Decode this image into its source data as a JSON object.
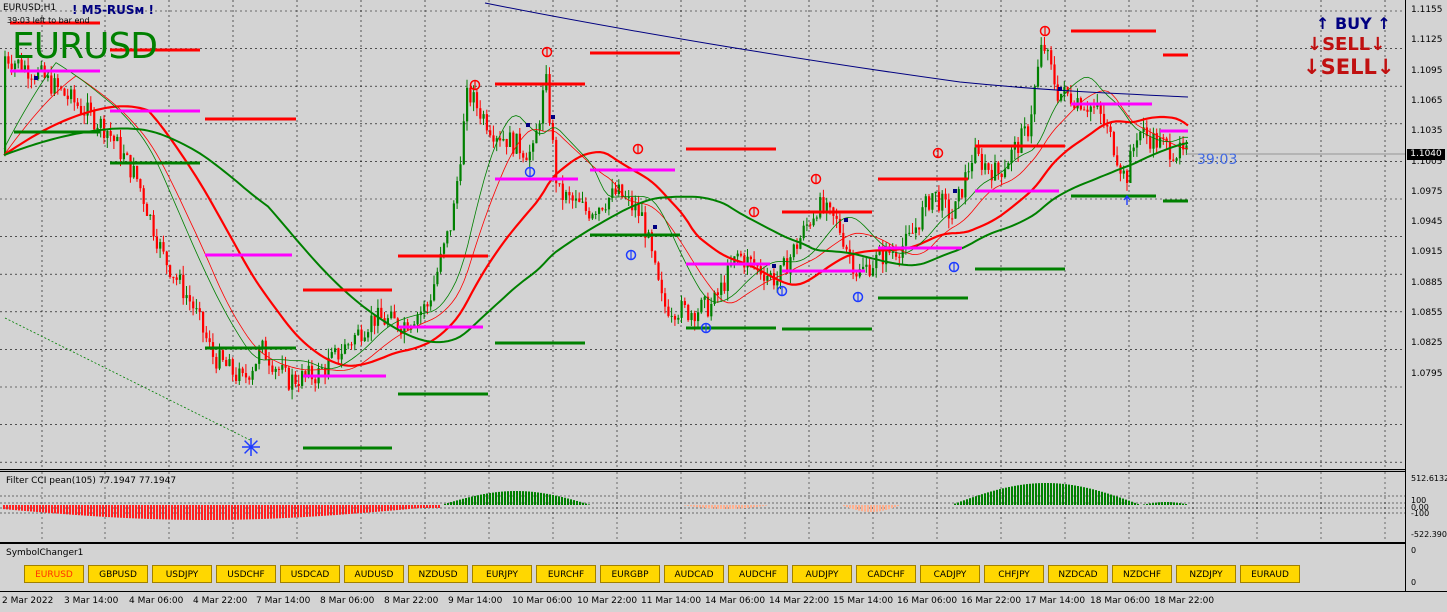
{
  "chart_header": {
    "symbol_timeframe": "EURUSD,H1",
    "indicator_name": "! M5-RUSм !",
    "countdown_note": "39:03 left to bar end",
    "watermark": "EURUSD",
    "bar_timer": "39:03"
  },
  "signals": {
    "buy": "↑ BUY ↑",
    "sell_1": "↓SELL↓",
    "sell_2": "↓SELL↓"
  },
  "price_axis": {
    "labels": [
      "1.1155",
      "1.1125",
      "1.1095",
      "1.1065",
      "1.1035",
      "1.1005",
      "1.0975",
      "1.0945",
      "1.0915",
      "1.0885",
      "1.0855",
      "1.0825",
      "1.0795"
    ],
    "current_price": "1.1040"
  },
  "cci": {
    "title": "Filter CCI pean(105)",
    "values": "77.1947 77.1947",
    "axis_labels": [
      "512.6132",
      "100",
      "0.00",
      "-100",
      "-522.3905"
    ]
  },
  "symbol_changer": {
    "title": "SymbolChanger1",
    "axis_labels": [
      "0",
      "0"
    ],
    "symbols": [
      "EURUSD",
      "GBPUSD",
      "USDJPY",
      "USDCHF",
      "USDCAD",
      "AUDUSD",
      "NZDUSD",
      "EURJPY",
      "EURCHF",
      "EURGBP",
      "AUDCAD",
      "AUDCHF",
      "AUDJPY",
      "CADCHF",
      "CADJPY",
      "CHFJPY",
      "NZDCAD",
      "NZDCHF",
      "NZDJPY",
      "EURAUD"
    ],
    "active": "EURUSD"
  },
  "time_axis": [
    "2 Mar 2022",
    "3 Mar 14:00",
    "4 Mar 06:00",
    "4 Mar 22:00",
    "7 Mar 14:00",
    "8 Mar 06:00",
    "8 Mar 22:00",
    "9 Mar 14:00",
    "10 Mar 06:00",
    "10 Mar 22:00",
    "11 Mar 14:00",
    "14 Mar 06:00",
    "14 Mar 22:00",
    "15 Mar 14:00",
    "16 Mar 06:00",
    "16 Mar 22:00",
    "17 Mar 14:00",
    "18 Mar 06:00",
    "18 Mar 22:00"
  ],
  "colors": {
    "bull": "#008000",
    "bear": "#ff0000",
    "ma_slow": "#000080",
    "level_magenta": "#ff00ff",
    "button": "#ffd700"
  }
}
